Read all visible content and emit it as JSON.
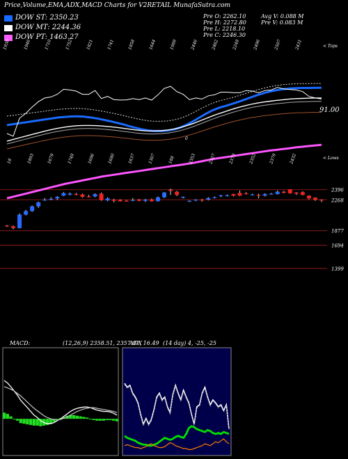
{
  "header": {
    "title": "Price,Volume,EMA,ADX,MACD Charts for V2RETAIL MunafaSutra.com"
  },
  "legend": [
    {
      "label": "DOW ST: 2350.23",
      "color": "#1a6bff"
    },
    {
      "label": "DOW MT: 2244.36",
      "color": "#ffffff"
    },
    {
      "label": "DOW PT: 1463.27",
      "color": "#ff5cff"
    }
  ],
  "info": {
    "pre_o": "Pre  O: 2262.10",
    "pre_h": "Pre  H: 2272.80",
    "pre_l": "Pre  L: 2218.10",
    "pre_c": "Pre  C: 2246.30",
    "avg_v": "Avg V: 0.088 M",
    "pre_v": "Pre  V: 0.083 M"
  },
  "misc": {
    "tops": "< Tops",
    "lows": "< Lows",
    "volume_label": "91.00",
    "adx_index": "0"
  },
  "chart_data": [
    {
      "type": "candlestick",
      "panel": "price",
      "series": [
        {
          "name": "DOW ST",
          "color": "#1a6bff",
          "values": [
            2155,
            2160,
            2165,
            2170,
            2175,
            2180,
            2185,
            2190,
            2195,
            2198,
            2200,
            2201,
            2199,
            2195,
            2190,
            2183,
            2176,
            2168,
            2160,
            2150,
            2141,
            2133,
            2127,
            2124,
            2124,
            2126,
            2132,
            2142,
            2157,
            2175,
            2195,
            2215,
            2232,
            2245,
            2255,
            2265,
            2276,
            2288,
            2300,
            2312,
            2322,
            2331,
            2338,
            2343,
            2346,
            2348,
            2349,
            2349,
            2350,
            2350
          ]
        },
        {
          "name": "DOW MT",
          "color": "#ffffff",
          "values": [
            2040,
            2048,
            2056,
            2064,
            2072,
            2080,
            2088,
            2095,
            2101,
            2106,
            2110,
            2113,
            2114,
            2114,
            2113,
            2111,
            2108,
            2105,
            2101,
            2097,
            2093,
            2090,
            2088,
            2088,
            2089,
            2092,
            2097,
            2104,
            2113,
            2123,
            2135,
            2147,
            2159,
            2170,
            2180,
            2190,
            2199,
            2207,
            2214,
            2220,
            2225,
            2229,
            2233,
            2236,
            2239,
            2241,
            2242,
            2243,
            2244,
            2244
          ]
        },
        {
          "name": "DOW PT",
          "color": "#ff5cff",
          "values": [
            1295,
            1300,
            1305,
            1310,
            1315,
            1320,
            1325,
            1330,
            1335,
            1340,
            1344,
            1348,
            1352,
            1356,
            1360,
            1364,
            1367,
            1370,
            1373,
            1376,
            1379,
            1382,
            1385,
            1388,
            1391,
            1394,
            1397,
            1400,
            1403,
            1406,
            1410,
            1414,
            1418,
            1421,
            1424,
            1427,
            1430,
            1433,
            1436,
            1439,
            1442,
            1445,
            1447,
            1450,
            1452,
            1455,
            1457,
            1459,
            1461,
            1463
          ]
        }
      ],
      "candles": [
        {
          "o": 1940,
          "c": 1935,
          "h": 1950,
          "l": 1925
        },
        {
          "o": 1932,
          "c": 1910,
          "h": 1942,
          "l": 1895
        },
        {
          "o": 1910,
          "c": 2080,
          "h": 2095,
          "l": 1905
        },
        {
          "o": 2080,
          "c": 2125,
          "h": 2140,
          "l": 2070
        },
        {
          "o": 2125,
          "c": 2185,
          "h": 2195,
          "l": 2115
        },
        {
          "o": 2185,
          "c": 2235,
          "h": 2245,
          "l": 2165
        },
        {
          "o": 2260,
          "c": 2270,
          "h": 2290,
          "l": 2255
        },
        {
          "o": 2268,
          "c": 2280,
          "h": 2300,
          "l": 2262
        },
        {
          "o": 2285,
          "c": 2305,
          "h": 2315,
          "l": 2265
        },
        {
          "o": 2320,
          "c": 2352,
          "h": 2365,
          "l": 2315
        },
        {
          "o": 2330,
          "c": 2345,
          "h": 2360,
          "l": 2325
        },
        {
          "o": 2340,
          "c": 2335,
          "h": 2355,
          "l": 2325
        },
        {
          "o": 2335,
          "c": 2305,
          "h": 2345,
          "l": 2295
        },
        {
          "o": 2310,
          "c": 2305,
          "h": 2330,
          "l": 2300
        },
        {
          "o": 2310,
          "c": 2340,
          "h": 2350,
          "l": 2300
        },
        {
          "o": 2345,
          "c": 2265,
          "h": 2360,
          "l": 2255
        },
        {
          "o": 2260,
          "c": 2285,
          "h": 2300,
          "l": 2250
        },
        {
          "o": 2270,
          "c": 2255,
          "h": 2280,
          "l": 2235
        },
        {
          "o": 2265,
          "c": 2250,
          "h": 2275,
          "l": 2245
        },
        {
          "o": 2255,
          "c": 2252,
          "h": 2265,
          "l": 2245
        },
        {
          "o": 2265,
          "c": 2265,
          "h": 2290,
          "l": 2250
        },
        {
          "o": 2270,
          "c": 2255,
          "h": 2280,
          "l": 2250
        },
        {
          "o": 2255,
          "c": 2270,
          "h": 2280,
          "l": 2240
        },
        {
          "o": 2272,
          "c": 2250,
          "h": 2285,
          "l": 2245
        },
        {
          "o": 2250,
          "c": 2300,
          "h": 2310,
          "l": 2245
        },
        {
          "o": 2300,
          "c": 2360,
          "h": 2365,
          "l": 2290
        },
        {
          "o": 2395,
          "c": 2380,
          "h": 2410,
          "l": 2330
        },
        {
          "o": 2370,
          "c": 2330,
          "h": 2380,
          "l": 2315
        },
        {
          "o": 2300,
          "c": 2305,
          "h": 2310,
          "l": 2285
        },
        {
          "o": 2245,
          "c": 2255,
          "h": 2260,
          "l": 2240
        },
        {
          "o": 2260,
          "c": 2270,
          "h": 2275,
          "l": 2250
        },
        {
          "o": 2270,
          "c": 2260,
          "h": 2280,
          "l": 2245
        },
        {
          "o": 2270,
          "c": 2290,
          "h": 2300,
          "l": 2260
        },
        {
          "o": 2290,
          "c": 2300,
          "h": 2310,
          "l": 2285
        },
        {
          "o": 2315,
          "c": 2325,
          "h": 2330,
          "l": 2300
        },
        {
          "o": 2320,
          "c": 2325,
          "h": 2335,
          "l": 2310
        },
        {
          "o": 2340,
          "c": 2320,
          "h": 2345,
          "l": 2310
        },
        {
          "o": 2355,
          "c": 2320,
          "h": 2385,
          "l": 2315
        },
        {
          "o": 2350,
          "c": 2340,
          "h": 2365,
          "l": 2335
        },
        {
          "o": 2330,
          "c": 2335,
          "h": 2345,
          "l": 2325
        },
        {
          "o": 2330,
          "c": 2320,
          "h": 2345,
          "l": 2285
        },
        {
          "o": 2320,
          "c": 2340,
          "h": 2350,
          "l": 2310
        },
        {
          "o": 2345,
          "c": 2345,
          "h": 2355,
          "l": 2335
        },
        {
          "o": 2340,
          "c": 2370,
          "h": 2385,
          "l": 2335
        },
        {
          "o": 2370,
          "c": 2355,
          "h": 2380,
          "l": 2350
        },
        {
          "o": 2400,
          "c": 2350,
          "h": 2400,
          "l": 2345
        },
        {
          "o": 2360,
          "c": 2345,
          "h": 2365,
          "l": 2330
        },
        {
          "o": 2365,
          "c": 2330,
          "h": 2375,
          "l": 2325
        },
        {
          "o": 2320,
          "c": 2285,
          "h": 2325,
          "l": 2275
        },
        {
          "o": 2295,
          "c": 2270,
          "h": 2300,
          "l": 2255
        },
        {
          "o": 2270,
          "c": 2260,
          "h": 2275,
          "l": 2240
        }
      ],
      "h_lines": [
        2396,
        2268,
        1877,
        1694,
        1399
      ],
      "h_line_labels": [
        "2396",
        "2268",
        "1877",
        "1694",
        "1399"
      ],
      "tops": [
        "1930",
        "1946",
        "1710",
        "1752",
        "1821",
        "1741",
        "1858",
        "1644",
        "1989",
        "2446",
        "2462",
        "2248",
        "2496",
        "2507",
        "2431"
      ],
      "lows": [
        "18",
        "1893",
        "1679",
        "1748",
        "1696",
        "1680",
        "1637",
        "1307",
        "188",
        "2353",
        "2327",
        "2373",
        "2352",
        "2379",
        "2432"
      ]
    },
    {
      "type": "line",
      "panel": "macd",
      "title": "MACD",
      "params": "(12,26,9) 2358.51, 2357.07, 16.49",
      "x": [
        0,
        1,
        2,
        3,
        4,
        5,
        6,
        7,
        8,
        9,
        10,
        11,
        12,
        13,
        14,
        15,
        16,
        17,
        18,
        19,
        20,
        21,
        22,
        23,
        24,
        25,
        26,
        27,
        28,
        29,
        30,
        31,
        32,
        33,
        34
      ],
      "series": [
        {
          "name": "MACD",
          "values": [
            62,
            58,
            52,
            45,
            38,
            30,
            24,
            18,
            12,
            6,
            2,
            -3,
            -6,
            -8,
            -8,
            -6,
            -3,
            0,
            4,
            8,
            12,
            15,
            17,
            18,
            19,
            19,
            18,
            16,
            14,
            13,
            12,
            12,
            11,
            9,
            6
          ]
        },
        {
          "name": "Signal",
          "values": [
            52,
            50,
            48,
            45,
            41,
            37,
            32,
            27,
            22,
            17,
            13,
            9,
            5,
            2,
            0,
            -1,
            -2,
            -1,
            1,
            3,
            6,
            9,
            12,
            14,
            16,
            17,
            18,
            18,
            17,
            16,
            15,
            14,
            13,
            12,
            10
          ]
        }
      ],
      "histogram": [
        10,
        8,
        4,
        0,
        -3,
        -7,
        -8,
        -9,
        -10,
        -11,
        -11,
        -12,
        -11,
        -10,
        -8,
        -5,
        -1,
        1,
        3,
        5,
        6,
        6,
        5,
        4,
        3,
        2,
        0,
        -2,
        -3,
        -3,
        -3,
        -2,
        -2,
        -3,
        -4
      ]
    },
    {
      "type": "line",
      "panel": "adx",
      "title": "ADX",
      "params": "(14 day) 4, -25, -25",
      "x": [
        0,
        1,
        2,
        3,
        4,
        5,
        6,
        7,
        8,
        9,
        10,
        11,
        12,
        13,
        14,
        15,
        16,
        17,
        18,
        19,
        20,
        21,
        22,
        23,
        24,
        25,
        26,
        27,
        28,
        29,
        30,
        31,
        32,
        33,
        34,
        35,
        36,
        37,
        38,
        39
      ],
      "series": [
        {
          "name": "ADX",
          "color": "#ffffff",
          "values": [
            72,
            68,
            70,
            62,
            58,
            52,
            40,
            30,
            36,
            30,
            35,
            45,
            58,
            62,
            55,
            58,
            48,
            42,
            60,
            70,
            62,
            55,
            65,
            58,
            52,
            40,
            30,
            48,
            50,
            62,
            68,
            58,
            50,
            55,
            52,
            48,
            50,
            44,
            50,
            25
          ]
        },
        {
          "name": "+DI",
          "color": "#00e000",
          "values": [
            18,
            16,
            15,
            14,
            13,
            11,
            10,
            9,
            9,
            8,
            8,
            9,
            10,
            12,
            14,
            16,
            15,
            14,
            15,
            17,
            18,
            17,
            16,
            20,
            26,
            28,
            27,
            25,
            24,
            23,
            22,
            24,
            23,
            21,
            20,
            21,
            20,
            22,
            21,
            20
          ]
        },
        {
          "name": "-DI",
          "color": "#ff7a00",
          "values": [
            8,
            9,
            8,
            7,
            6,
            6,
            5,
            6,
            7,
            9,
            10,
            8,
            7,
            6,
            6,
            7,
            9,
            11,
            10,
            8,
            7,
            6,
            5,
            5,
            4,
            4,
            5,
            6,
            7,
            8,
            10,
            9,
            8,
            10,
            12,
            11,
            13,
            15,
            12,
            10
          ]
        }
      ]
    }
  ]
}
